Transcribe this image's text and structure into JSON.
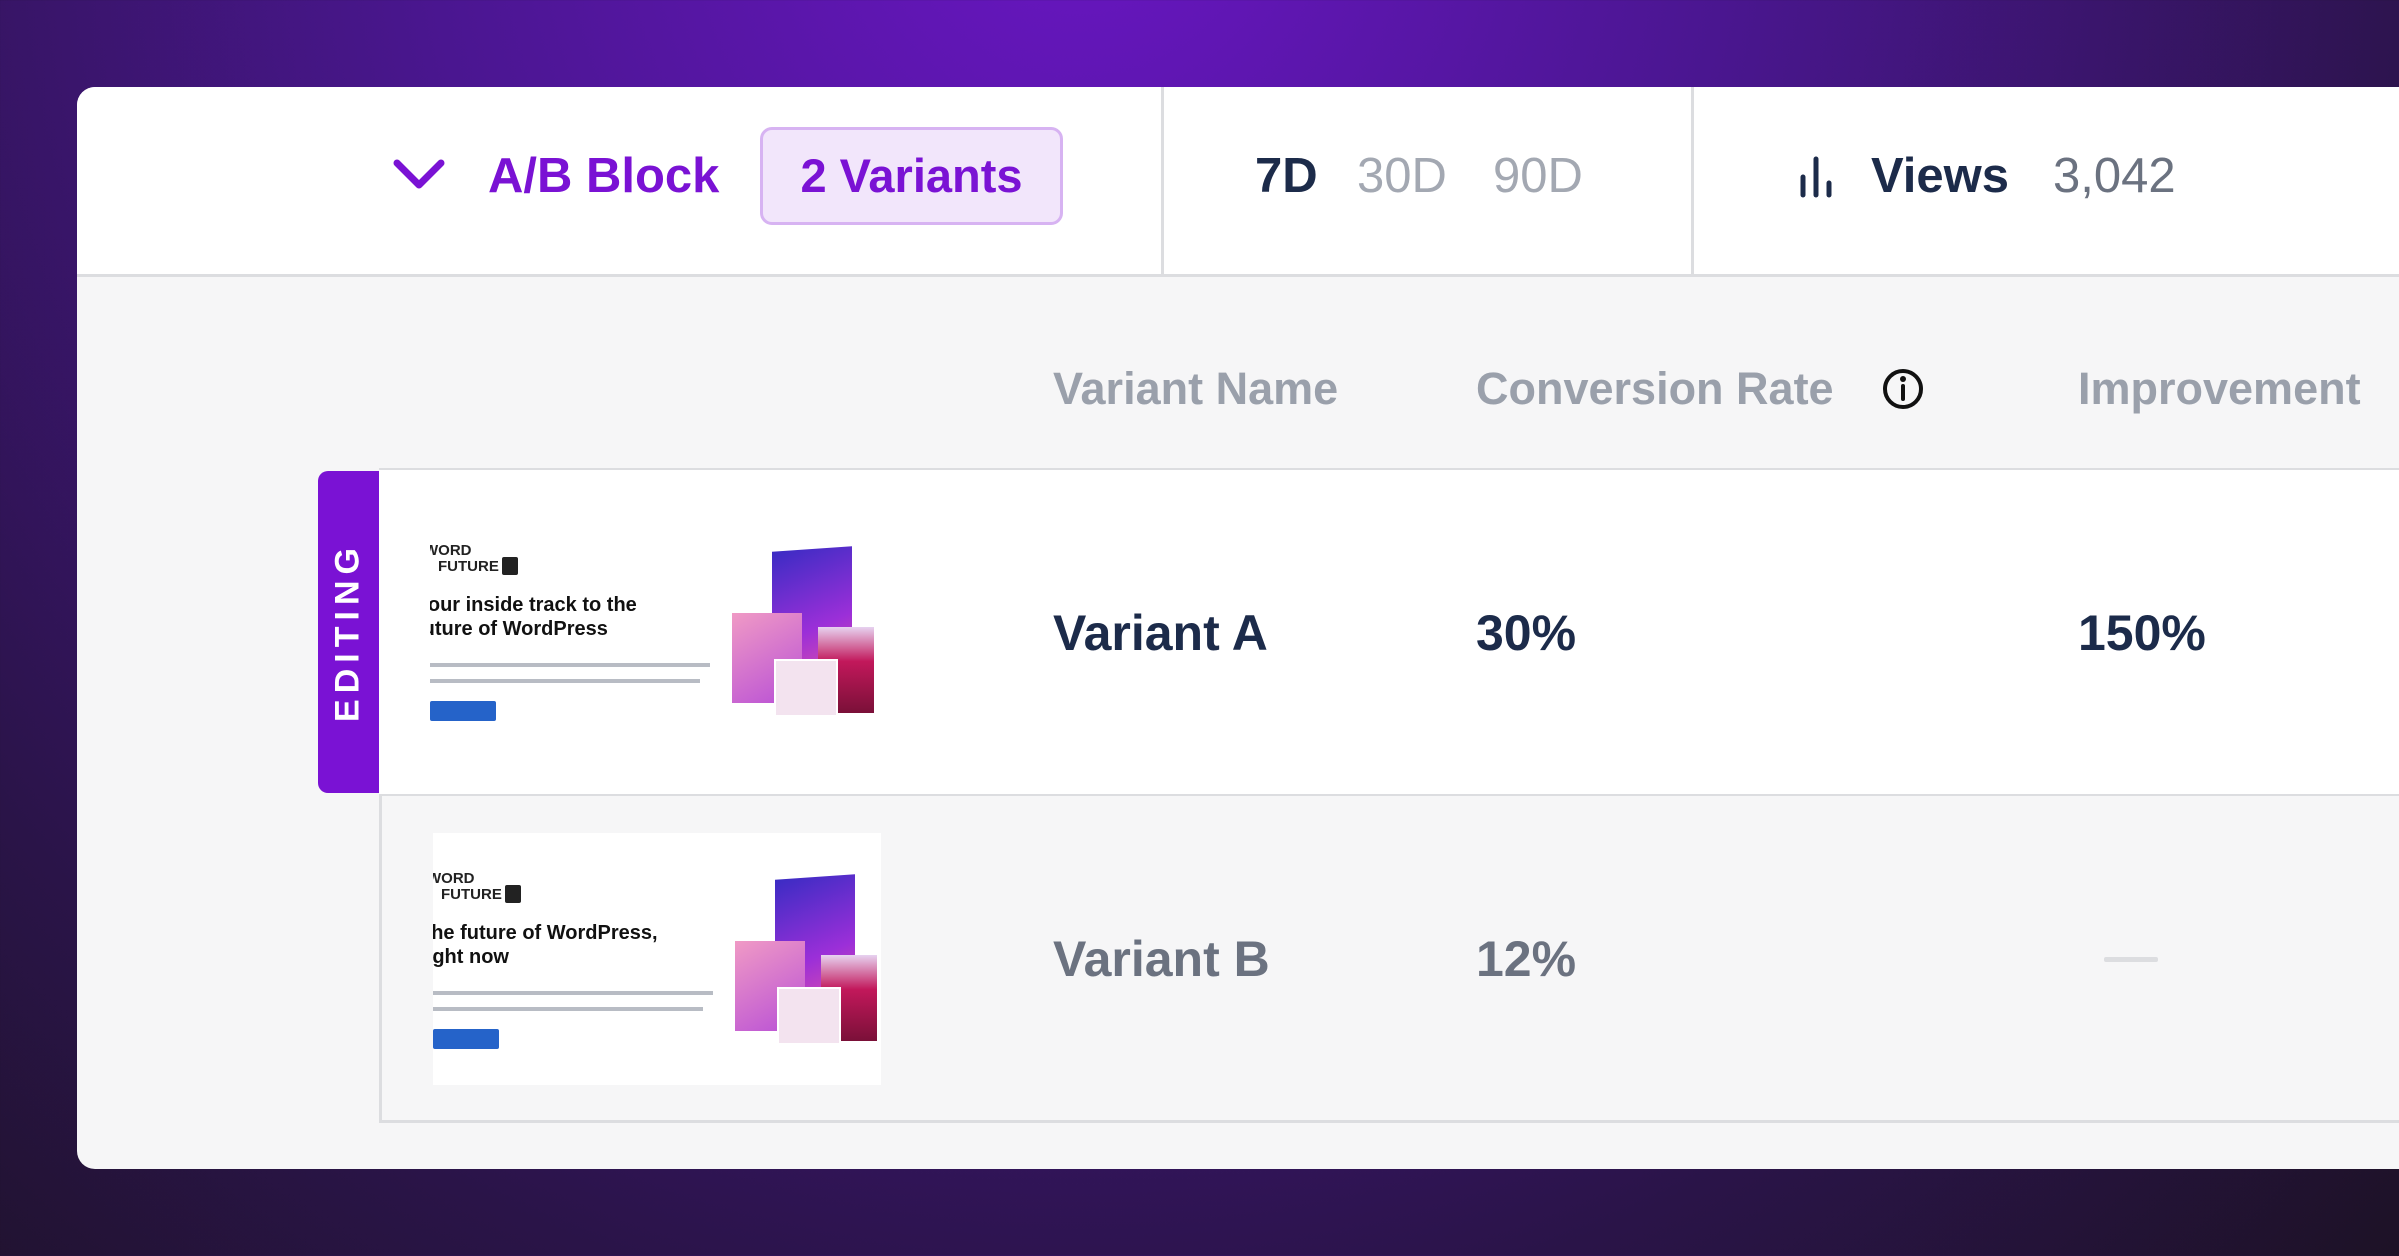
{
  "header": {
    "title": "A/B Block",
    "badge": "2 Variants",
    "ranges": [
      {
        "label": "7D",
        "selected": true
      },
      {
        "label": "30D",
        "selected": false
      },
      {
        "label": "90D",
        "selected": false
      }
    ],
    "metric_label": "Views",
    "metric_value": "3,042"
  },
  "table": {
    "columns": [
      "Variant Name",
      "Conversion Rate",
      "Improvement"
    ],
    "rows": [
      {
        "status": "EDITING",
        "name": "Variant A",
        "conversion_rate": "30%",
        "improvement": "150%",
        "thumbnail": {
          "logo_top": "WORD",
          "logo_bottom": "FUTURE",
          "heading": [
            "Your inside track to the",
            "future of WordPress"
          ]
        }
      },
      {
        "name": "Variant B",
        "conversion_rate": "12%",
        "thumbnail": {
          "logo_top": "WORD",
          "logo_bottom": "FUTURE",
          "heading": [
            "The future of WordPress,",
            "right now"
          ]
        }
      }
    ]
  }
}
